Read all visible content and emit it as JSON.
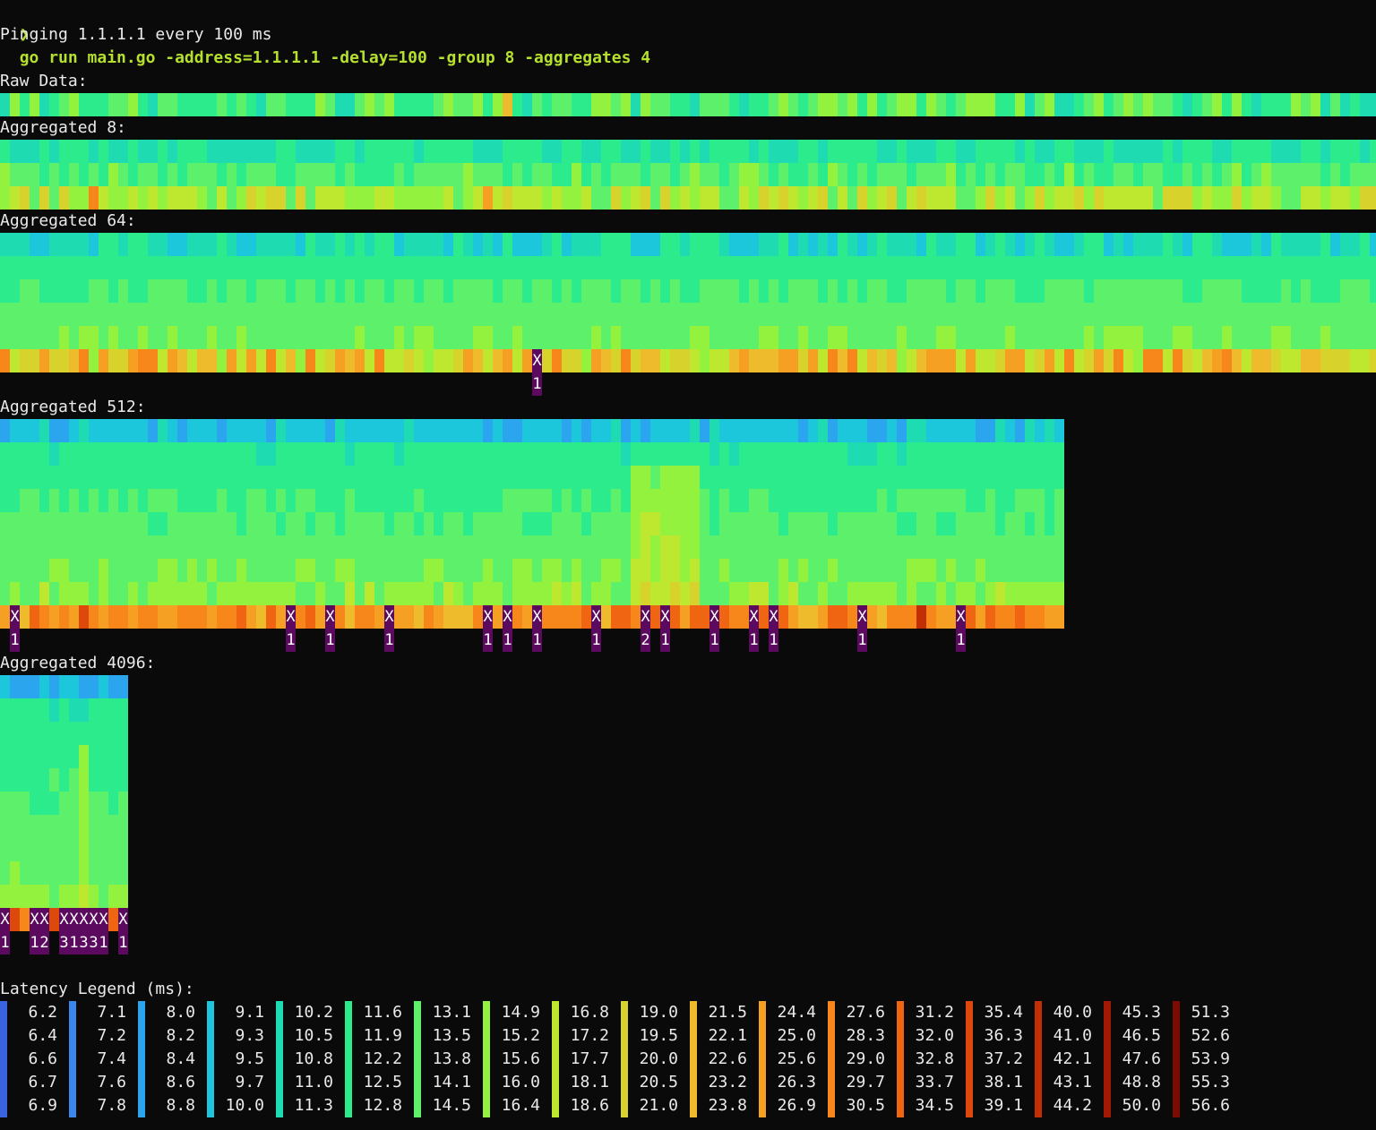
{
  "terminal": {
    "prompt": "❯",
    "command": "go run main.go -address=1.1.1.1 -delay=100 -group 8 -aggregates 4",
    "status_line": "Pinging 1.1.1.1 every 100 ms"
  },
  "sections": [
    {
      "label": "Raw Data:",
      "rows": 1,
      "cols": 140,
      "profile": "raw",
      "drops": []
    },
    {
      "label": "Aggregated 8:",
      "rows": 3,
      "cols": 140,
      "profile": "agg8",
      "drops": []
    },
    {
      "label": "Aggregated 64:",
      "rows": 6,
      "cols": 140,
      "profile": "agg64",
      "drops": [
        {
          "col": 54,
          "mark": "X",
          "count": "1"
        }
      ]
    },
    {
      "label": "Aggregated 512:",
      "rows": 9,
      "cols": 108,
      "profile": "agg512",
      "drops": [
        {
          "col": 1,
          "mark": "X",
          "count": "1"
        },
        {
          "col": 29,
          "mark": "X",
          "count": "1"
        },
        {
          "col": 33,
          "mark": "X",
          "count": "1"
        },
        {
          "col": 39,
          "mark": "X",
          "count": "1"
        },
        {
          "col": 49,
          "mark": "X",
          "count": "1"
        },
        {
          "col": 51,
          "mark": "X",
          "count": "1"
        },
        {
          "col": 54,
          "mark": "X",
          "count": "1"
        },
        {
          "col": 60,
          "mark": "X",
          "count": "1"
        },
        {
          "col": 65,
          "mark": "X",
          "count": "2"
        },
        {
          "col": 67,
          "mark": "X",
          "count": "1"
        },
        {
          "col": 72,
          "mark": "X",
          "count": "1"
        },
        {
          "col": 76,
          "mark": "X",
          "count": "1"
        },
        {
          "col": 78,
          "mark": "X",
          "count": "1"
        },
        {
          "col": 87,
          "mark": "X",
          "count": "1"
        },
        {
          "col": 97,
          "mark": "X",
          "count": "1"
        }
      ]
    },
    {
      "label": "Aggregated 4096:",
      "rows": 11,
      "cols": 13,
      "profile": "agg4096",
      "drops": [
        {
          "col": 0,
          "mark": "X",
          "count": "1"
        },
        {
          "col": 3,
          "mark": "X",
          "count": "1"
        },
        {
          "col": 4,
          "mark": "X",
          "count": "2"
        },
        {
          "col": 6,
          "mark": "X",
          "count": "3"
        },
        {
          "col": 7,
          "mark": "X",
          "count": "1"
        },
        {
          "col": 8,
          "mark": "X",
          "count": "3"
        },
        {
          "col": 9,
          "mark": "X",
          "count": "3"
        },
        {
          "col": 10,
          "mark": "X",
          "count": "1"
        },
        {
          "col": 12,
          "mark": "X",
          "count": "1"
        }
      ]
    }
  ],
  "legend": {
    "title": "Latency Legend (ms):",
    "columns": [
      {
        "color": "#3a63e0",
        "values": [
          "6.2",
          "6.4",
          "6.6",
          "6.7",
          "6.9"
        ]
      },
      {
        "color": "#3b86ee",
        "values": [
          "7.1",
          "7.2",
          "7.4",
          "7.6",
          "7.8"
        ]
      },
      {
        "color": "#2aa5ee",
        "values": [
          "8.0",
          "8.2",
          "8.4",
          "8.6",
          "8.8"
        ]
      },
      {
        "color": "#1dc7db",
        "values": [
          "9.1",
          "9.3",
          "9.5",
          "9.7",
          "10.0"
        ]
      },
      {
        "color": "#1fdbb1",
        "values": [
          "10.2",
          "10.5",
          "10.8",
          "11.0",
          "11.3"
        ]
      },
      {
        "color": "#2ceb8c",
        "values": [
          "11.6",
          "11.9",
          "12.2",
          "12.5",
          "12.8"
        ]
      },
      {
        "color": "#5df06a",
        "values": [
          "13.1",
          "13.5",
          "13.8",
          "14.1",
          "14.5"
        ]
      },
      {
        "color": "#93f23e",
        "values": [
          "14.9",
          "15.2",
          "15.6",
          "16.0",
          "16.4"
        ]
      },
      {
        "color": "#bde82f",
        "values": [
          "16.8",
          "17.2",
          "17.7",
          "18.1",
          "18.6"
        ]
      },
      {
        "color": "#d8d32c",
        "values": [
          "19.0",
          "19.5",
          "20.0",
          "20.5",
          "21.0"
        ]
      },
      {
        "color": "#edbb2c",
        "values": [
          "21.5",
          "22.1",
          "22.6",
          "23.2",
          "23.8"
        ]
      },
      {
        "color": "#f6a023",
        "values": [
          "24.4",
          "25.0",
          "25.6",
          "26.3",
          "26.9"
        ]
      },
      {
        "color": "#f7861b",
        "values": [
          "27.6",
          "28.3",
          "29.0",
          "29.7",
          "30.5"
        ]
      },
      {
        "color": "#ef6512",
        "values": [
          "31.2",
          "32.0",
          "32.8",
          "33.7",
          "34.5"
        ]
      },
      {
        "color": "#dd480b",
        "values": [
          "35.4",
          "36.3",
          "37.2",
          "38.1",
          "39.1"
        ]
      },
      {
        "color": "#c22f05",
        "values": [
          "40.0",
          "41.0",
          "42.1",
          "43.1",
          "44.2"
        ]
      },
      {
        "color": "#a01a03",
        "values": [
          "45.3",
          "46.5",
          "47.6",
          "48.8",
          "50.0"
        ]
      },
      {
        "color": "#7d0b02",
        "values": [
          "51.3",
          "52.6",
          "53.9",
          "55.3",
          "56.6"
        ]
      }
    ]
  }
}
